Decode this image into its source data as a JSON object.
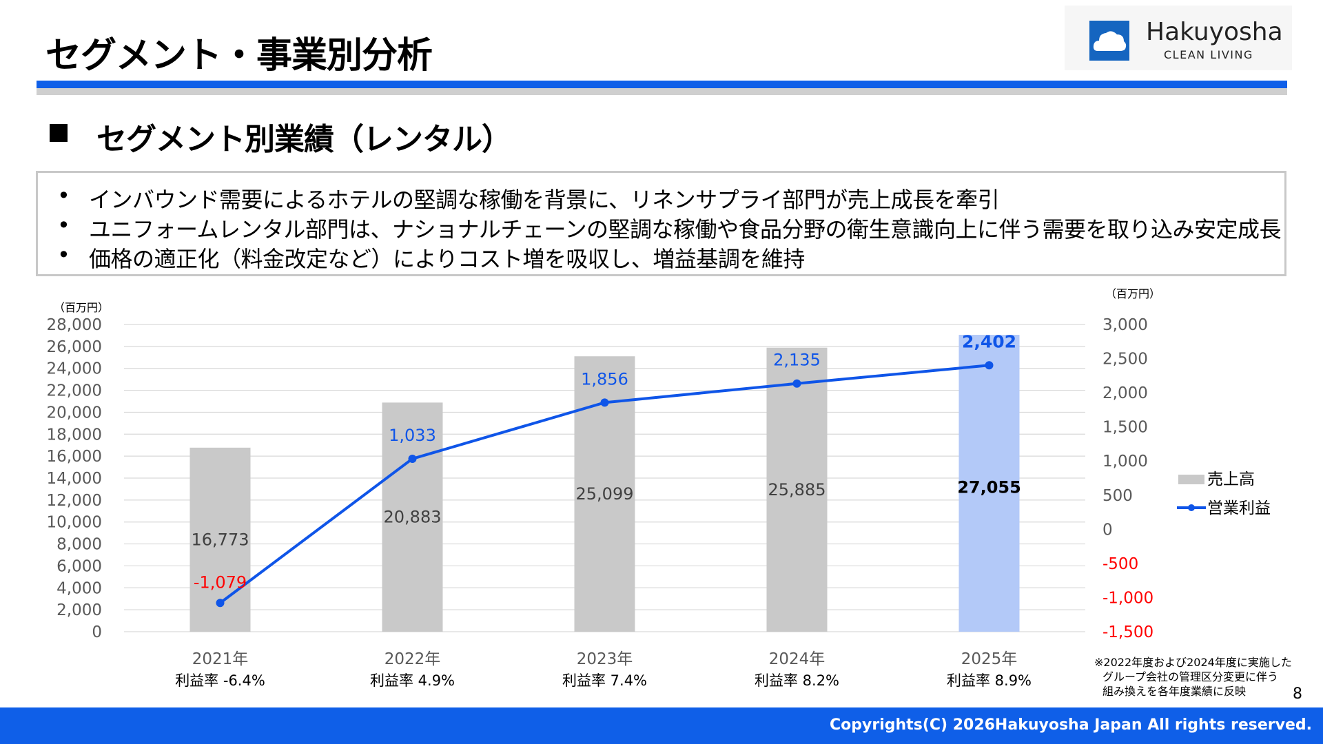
{
  "header": {
    "title": "セグメント・事業別分析",
    "logo_name": "Hakuyosha",
    "logo_sub": "CLEAN LIVING",
    "logo_icon": "cloud-icon"
  },
  "section": {
    "title": "セグメント別業績（レンタル）"
  },
  "bullets": [
    "インバウンド需要によるホテルの堅調な稼働を背景に、リネンサプライ部門が売上成長を牽引",
    "ユニフォームレンタル部門は、ナショナルチェーンの堅調な稼働や食品分野の衛生意識向上に伴う需要を取り込み安定成長",
    "価格の適正化（料金改定など）によりコスト増を吸収し、増益基調を維持"
  ],
  "chart_data": {
    "type": "bar",
    "categories": [
      "2021年",
      "2022年",
      "2023年",
      "2024年",
      "2025年"
    ],
    "sublabels": [
      "利益率  -6.4%",
      "利益率  4.9%",
      "利益率  7.4%",
      "利益率  8.2%",
      "利益率  8.9%"
    ],
    "series": [
      {
        "name": "売上高",
        "type": "bar",
        "axis": "left",
        "values": [
          16773,
          20883,
          25099,
          25885,
          27055
        ],
        "labels": [
          "16,773",
          "20,883",
          "25,099",
          "25,885",
          "27,055"
        ]
      },
      {
        "name": "営業利益",
        "type": "line",
        "axis": "right",
        "values": [
          -1079,
          1033,
          1856,
          2135,
          2402
        ],
        "labels": [
          "-1,079",
          "1,033",
          "1,856",
          "2,135",
          "2,402"
        ]
      }
    ],
    "left_unit": "（百万円）",
    "right_unit": "（百万円）",
    "ylim_left": [
      0,
      28000
    ],
    "ylim_right": [
      -1500,
      3000
    ],
    "left_ticks": [
      "0",
      "2,000",
      "4,000",
      "6,000",
      "8,000",
      "10,000",
      "12,000",
      "14,000",
      "16,000",
      "18,000",
      "20,000",
      "22,000",
      "24,000",
      "26,000",
      "28,000"
    ],
    "right_ticks": [
      "-1,500",
      "-1,000",
      "-500",
      "0",
      "500",
      "1,000",
      "1,500",
      "2,000",
      "2,500",
      "3,000"
    ],
    "grid": true,
    "legend_position": "right",
    "note": [
      "※2022年度および2024年度に実施した",
      "グループ会社の管理区分変更に伴う",
      "組み換えを各年度業績に反映"
    ],
    "colors": {
      "bar": "#c9c9c9",
      "bar_highlight": "#b3c9f8",
      "line": "#0f55e8",
      "negative": "#ff0000",
      "grid": "#d9d9d9",
      "axis_text": "#595959"
    }
  },
  "page_number": "8",
  "footer": {
    "copyright": "Copyrights(C) 2026Hakuyosha Japan All rights reserved."
  }
}
